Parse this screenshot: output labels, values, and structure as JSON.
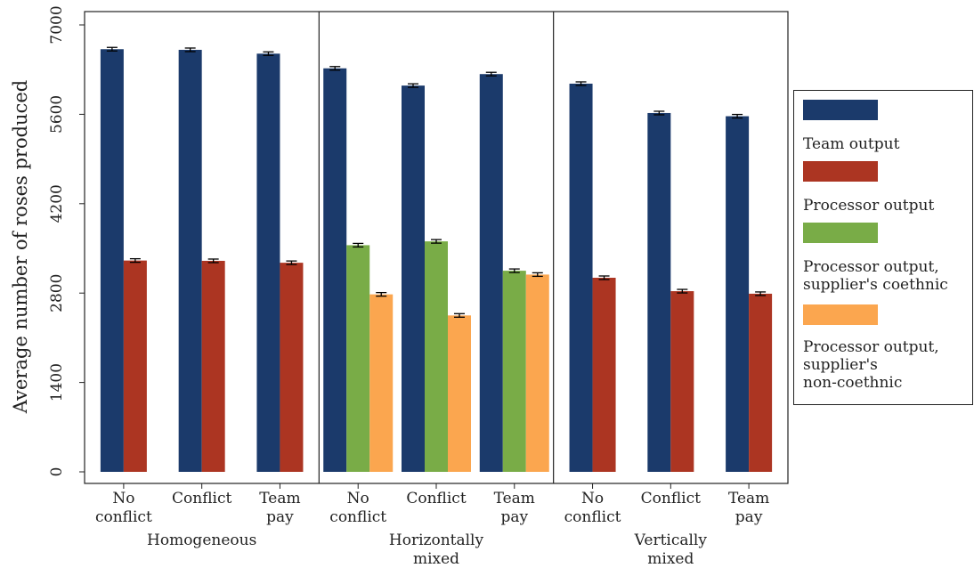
{
  "chart_data": {
    "type": "bar",
    "ylabel": "Average number of roses produced",
    "ylim": [
      0,
      7000
    ],
    "yticks": [
      0,
      1400,
      2800,
      4200,
      5600,
      7000
    ],
    "colors": {
      "Team output": "#1b3a6b",
      "Processor output": "#ac3522",
      "Processor output, supplier's coethnic": "#79ac47",
      "Processor output, supplier's non-coethnic": "#fba64f"
    },
    "panels": [
      {
        "group_label": "Homogeneous",
        "categories": [
          "No\nconflict",
          "Conflict",
          "Team\npay"
        ],
        "series": [
          {
            "name": "Team output",
            "values": [
              6620,
              6610,
              6550
            ]
          },
          {
            "name": "Processor output",
            "values": [
              3310,
              3305,
              3275
            ]
          }
        ]
      },
      {
        "group_label": "Horizontally\nmixed",
        "categories": [
          "No\nconflict",
          "Conflict",
          "Team\npay"
        ],
        "series": [
          {
            "name": "Team output",
            "values": [
              6320,
              6050,
              6230
            ]
          },
          {
            "name": "Processor output, supplier's coethnic",
            "values": [
              3550,
              3610,
              3150
            ]
          },
          {
            "name": "Processor output, supplier's non-coethnic",
            "values": [
              2780,
              2450,
              3090
            ]
          }
        ]
      },
      {
        "group_label": "Vertically\nmixed",
        "categories": [
          "No\nconflict",
          "Conflict",
          "Team\npay"
        ],
        "series": [
          {
            "name": "Team output",
            "values": [
              6080,
              5620,
              5570
            ]
          },
          {
            "name": "Processor output",
            "values": [
              3040,
              2830,
              2790
            ]
          }
        ]
      }
    ],
    "legend": {
      "position": "right",
      "entries": [
        {
          "color_key": "Team output",
          "label": "Team output"
        },
        {
          "color_key": "Processor output",
          "label": "Processor output"
        },
        {
          "color_key": "Processor output, supplier's coethnic",
          "label": "Processor output,\nsupplier's coethnic"
        },
        {
          "color_key": "Processor output, supplier's non-coethnic",
          "label": "Processor output,\nsupplier's\nnon-coethnic"
        }
      ]
    }
  }
}
